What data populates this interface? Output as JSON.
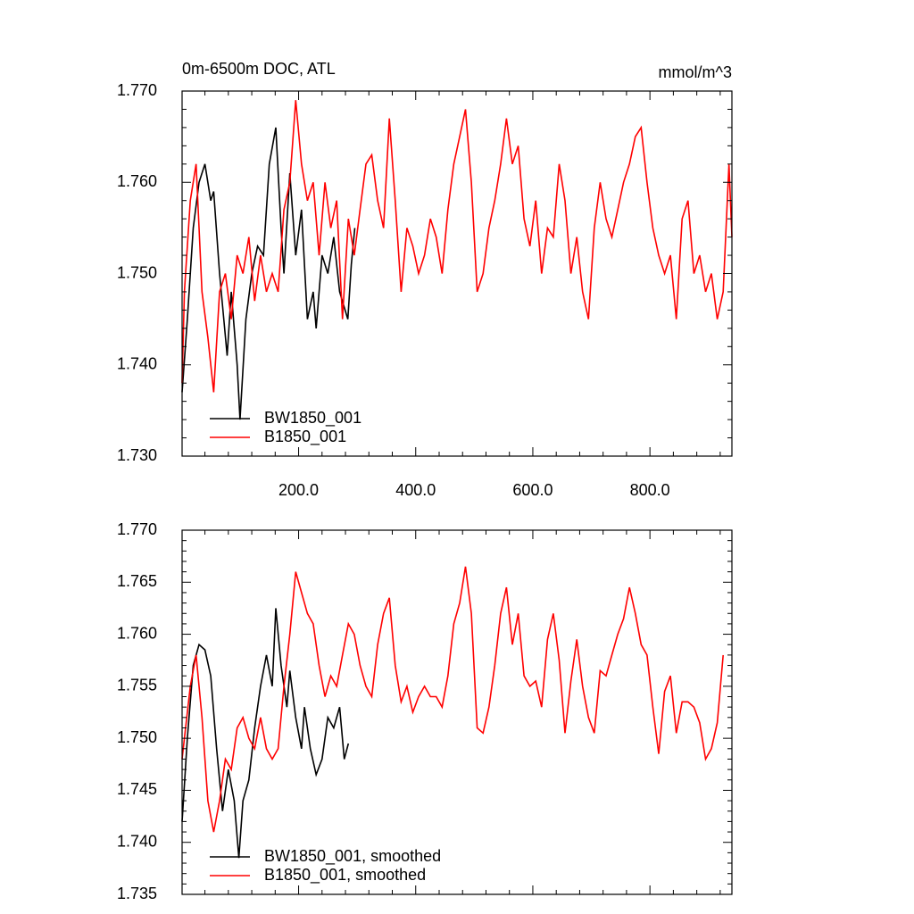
{
  "chart_data": [
    {
      "type": "line",
      "title": "0m-6500m DOC, ATL",
      "units": "mmol/m^3",
      "xlim": [
        1,
        940
      ],
      "ylim": [
        1.73,
        1.77
      ],
      "xticks": [
        {
          "value": 200,
          "label": "200.0"
        },
        {
          "value": 400,
          "label": "400.0"
        },
        {
          "value": 600,
          "label": "600.0"
        },
        {
          "value": 800,
          "label": "800.0"
        }
      ],
      "yticks": [
        {
          "value": 1.73,
          "label": "1.730"
        },
        {
          "value": 1.74,
          "label": "1.740"
        },
        {
          "value": 1.75,
          "label": "1.750"
        },
        {
          "value": 1.76,
          "label": "1.760"
        },
        {
          "value": 1.77,
          "label": "1.770"
        }
      ],
      "legend": "lower left",
      "series": [
        {
          "name": "BW1850_001",
          "color": "#000000",
          "x": [
            1,
            10,
            20,
            30,
            40,
            50,
            55,
            65,
            78,
            85,
            95,
            100,
            110,
            120,
            130,
            140,
            150,
            161,
            170,
            175,
            185,
            195,
            205,
            215,
            225,
            230,
            240,
            250,
            260,
            270,
            284,
            290,
            296
          ],
          "values": [
            1.737,
            1.745,
            1.755,
            1.76,
            1.762,
            1.758,
            1.759,
            1.75,
            1.741,
            1.748,
            1.74,
            1.734,
            1.745,
            1.75,
            1.753,
            1.752,
            1.762,
            1.766,
            1.755,
            1.75,
            1.761,
            1.752,
            1.757,
            1.745,
            1.748,
            1.744,
            1.752,
            1.75,
            1.754,
            1.748,
            1.745,
            1.751,
            1.755
          ]
        },
        {
          "name": "B1850_001",
          "color": "#ff0000",
          "x": [
            1,
            5,
            15,
            25,
            35,
            45,
            55,
            65,
            75,
            85,
            95,
            105,
            115,
            125,
            135,
            145,
            155,
            165,
            175,
            185,
            195,
            205,
            215,
            225,
            235,
            245,
            255,
            265,
            275,
            285,
            295,
            305,
            315,
            325,
            335,
            345,
            355,
            365,
            375,
            385,
            395,
            405,
            415,
            425,
            435,
            445,
            455,
            465,
            475,
            485,
            495,
            505,
            515,
            525,
            535,
            545,
            555,
            565,
            575,
            585,
            595,
            605,
            615,
            625,
            635,
            645,
            655,
            665,
            675,
            685,
            695,
            705,
            715,
            725,
            735,
            745,
            755,
            765,
            775,
            785,
            795,
            805,
            815,
            825,
            835,
            845,
            855,
            865,
            875,
            885,
            895,
            905,
            915,
            925,
            935,
            940
          ],
          "values": [
            1.738,
            1.748,
            1.758,
            1.762,
            1.748,
            1.743,
            1.737,
            1.748,
            1.75,
            1.745,
            1.752,
            1.75,
            1.754,
            1.747,
            1.752,
            1.748,
            1.75,
            1.748,
            1.757,
            1.76,
            1.769,
            1.762,
            1.758,
            1.76,
            1.752,
            1.76,
            1.755,
            1.758,
            1.745,
            1.756,
            1.752,
            1.757,
            1.762,
            1.763,
            1.758,
            1.755,
            1.767,
            1.758,
            1.748,
            1.755,
            1.753,
            1.75,
            1.752,
            1.756,
            1.754,
            1.75,
            1.757,
            1.762,
            1.765,
            1.768,
            1.76,
            1.748,
            1.75,
            1.755,
            1.758,
            1.762,
            1.767,
            1.762,
            1.764,
            1.756,
            1.753,
            1.758,
            1.75,
            1.755,
            1.754,
            1.762,
            1.758,
            1.75,
            1.754,
            1.748,
            1.745,
            1.755,
            1.76,
            1.756,
            1.754,
            1.757,
            1.76,
            1.762,
            1.765,
            1.766,
            1.76,
            1.755,
            1.752,
            1.75,
            1.752,
            1.745,
            1.756,
            1.758,
            1.75,
            1.752,
            1.748,
            1.75,
            1.745,
            1.748,
            1.762,
            1.754
          ]
        }
      ]
    },
    {
      "type": "line",
      "xlim": [
        1,
        940
      ],
      "ylim": [
        1.735,
        1.77
      ],
      "yticks": [
        {
          "value": 1.735,
          "label": "1.735"
        },
        {
          "value": 1.74,
          "label": "1.740"
        },
        {
          "value": 1.745,
          "label": "1.745"
        },
        {
          "value": 1.75,
          "label": "1.750"
        },
        {
          "value": 1.755,
          "label": "1.755"
        },
        {
          "value": 1.76,
          "label": "1.760"
        },
        {
          "value": 1.765,
          "label": "1.765"
        },
        {
          "value": 1.77,
          "label": "1.770"
        }
      ],
      "legend": "lower left",
      "series": [
        {
          "name": "BW1850_001, smoothed",
          "color": "#000000",
          "x": [
            1,
            10,
            20,
            30,
            40,
            50,
            60,
            70,
            80,
            90,
            98,
            105,
            115,
            125,
            135,
            145,
            155,
            161,
            170,
            180,
            185,
            195,
            205,
            210,
            220,
            230,
            240,
            250,
            260,
            270,
            278,
            285
          ],
          "values": [
            1.742,
            1.75,
            1.757,
            1.759,
            1.7585,
            1.756,
            1.749,
            1.743,
            1.747,
            1.744,
            1.7385,
            1.744,
            1.746,
            1.751,
            1.755,
            1.758,
            1.755,
            1.7625,
            1.757,
            1.753,
            1.7565,
            1.752,
            1.749,
            1.753,
            1.749,
            1.7465,
            1.748,
            1.752,
            1.751,
            1.753,
            1.748,
            1.7495
          ]
        },
        {
          "name": "B1850_001, smoothed",
          "color": "#ff0000",
          "x": [
            1,
            5,
            15,
            25,
            35,
            45,
            55,
            65,
            75,
            85,
            95,
            105,
            115,
            125,
            135,
            145,
            155,
            165,
            175,
            185,
            195,
            205,
            215,
            225,
            235,
            245,
            255,
            265,
            275,
            285,
            295,
            305,
            315,
            325,
            335,
            345,
            355,
            365,
            375,
            385,
            395,
            405,
            415,
            425,
            435,
            445,
            455,
            465,
            475,
            485,
            495,
            505,
            515,
            525,
            535,
            545,
            555,
            565,
            575,
            585,
            595,
            605,
            615,
            625,
            635,
            645,
            655,
            665,
            675,
            685,
            695,
            705,
            715,
            725,
            735,
            745,
            755,
            765,
            775,
            785,
            795,
            805,
            815,
            825,
            835,
            845,
            855,
            865,
            875,
            885,
            895,
            905,
            915,
            925
          ],
          "values": [
            1.748,
            1.75,
            1.755,
            1.758,
            1.752,
            1.744,
            1.741,
            1.744,
            1.748,
            1.747,
            1.751,
            1.752,
            1.75,
            1.749,
            1.752,
            1.749,
            1.748,
            1.749,
            1.755,
            1.76,
            1.766,
            1.764,
            1.762,
            1.761,
            1.757,
            1.754,
            1.756,
            1.755,
            1.758,
            1.761,
            1.76,
            1.757,
            1.755,
            1.754,
            1.759,
            1.762,
            1.7635,
            1.757,
            1.7535,
            1.755,
            1.7525,
            1.754,
            1.755,
            1.754,
            1.754,
            1.753,
            1.756,
            1.761,
            1.763,
            1.7665,
            1.762,
            1.751,
            1.7505,
            1.753,
            1.757,
            1.762,
            1.7645,
            1.759,
            1.762,
            1.756,
            1.755,
            1.7555,
            1.753,
            1.7595,
            1.762,
            1.7575,
            1.7505,
            1.7555,
            1.7595,
            1.755,
            1.752,
            1.7505,
            1.7565,
            1.756,
            1.758,
            1.76,
            1.7615,
            1.7645,
            1.762,
            1.759,
            1.758,
            1.753,
            1.7485,
            1.7545,
            1.756,
            1.7505,
            1.7535,
            1.7535,
            1.753,
            1.7515,
            1.748,
            1.749,
            1.7515,
            1.758
          ]
        }
      ]
    }
  ]
}
